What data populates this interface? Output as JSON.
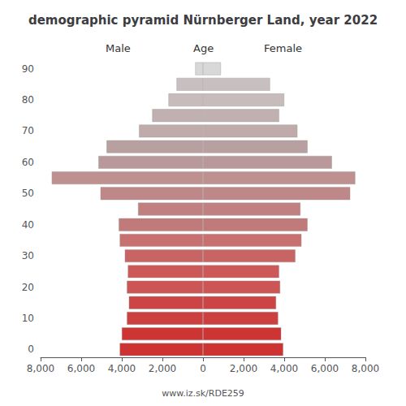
{
  "chart_data": {
    "type": "bar",
    "orientation": "horizontal",
    "title": "demographic pyramid Nürnberger Land, year 2022",
    "ylabel": "Age",
    "annotations": [
      "www.iz.sk/RDE259"
    ],
    "categories": [
      "0",
      null,
      "10",
      null,
      "20",
      null,
      "30",
      null,
      "40",
      null,
      "50",
      null,
      "60",
      null,
      "70",
      null,
      "80",
      null,
      "90"
    ],
    "series": [
      {
        "name": "Male",
        "values": [
          4100,
          4000,
          3750,
          3650,
          3750,
          3700,
          3850,
          4100,
          4150,
          3200,
          5050,
          7450,
          5150,
          4750,
          3150,
          2500,
          1700,
          1300,
          380
        ]
      },
      {
        "name": "Female",
        "values": [
          3950,
          3850,
          3700,
          3600,
          3800,
          3750,
          4550,
          4850,
          5150,
          4800,
          7250,
          7500,
          6350,
          5150,
          4650,
          3750,
          4000,
          3300,
          880
        ]
      }
    ],
    "colors": [
      "#cd3333",
      "#cd3535",
      "#cd4040",
      "#cc4545",
      "#cc5555",
      "#cc5858",
      "#c86464",
      "#c87070",
      "#c07a7a",
      "#c08080",
      "#bf8888",
      "#bf9090",
      "#b89898",
      "#b8a0a0",
      "#c0aaaa",
      "#c0b0b0",
      "#c8bbbb",
      "#c8c0c0",
      "#d8d8d8"
    ],
    "xlim": [
      0,
      8000
    ],
    "xticks": [
      0,
      2000,
      4000,
      6000,
      8000
    ],
    "grid": false
  }
}
